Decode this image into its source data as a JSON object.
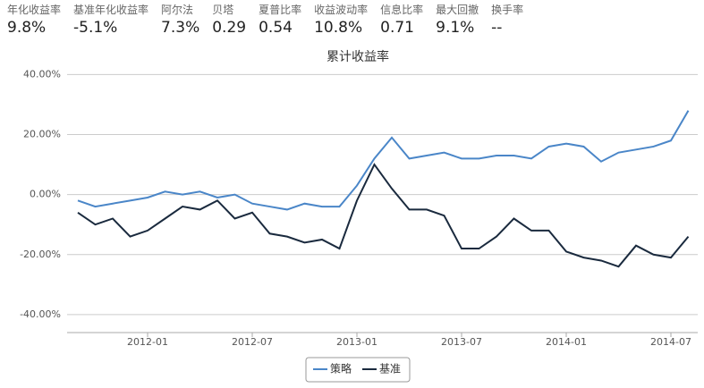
{
  "stats": [
    {
      "label": "年化收益率",
      "value": "9.8%"
    },
    {
      "label": "基准年化收益率",
      "value": "-5.1%"
    },
    {
      "label": "阿尔法",
      "value": "7.3%"
    },
    {
      "label": "贝塔",
      "value": "0.29"
    },
    {
      "label": "夏普比率",
      "value": "0.54"
    },
    {
      "label": "收益波动率",
      "value": "10.8%"
    },
    {
      "label": "信息比率",
      "value": "0.71"
    },
    {
      "label": "最大回撤",
      "value": "9.1%"
    },
    {
      "label": "换手率",
      "value": "--"
    }
  ],
  "chart_data": {
    "type": "line",
    "title": "累计收益率",
    "x": [
      "2011-09",
      "2011-10",
      "2011-11",
      "2011-12",
      "2012-01",
      "2012-02",
      "2012-03",
      "2012-04",
      "2012-05",
      "2012-06",
      "2012-07",
      "2012-08",
      "2012-09",
      "2012-10",
      "2012-11",
      "2012-12",
      "2013-01",
      "2013-02",
      "2013-03",
      "2013-04",
      "2013-05",
      "2013-06",
      "2013-07",
      "2013-08",
      "2013-09",
      "2013-10",
      "2013-11",
      "2013-12",
      "2014-01",
      "2014-02",
      "2014-03",
      "2014-04",
      "2014-05",
      "2014-06",
      "2014-07",
      "2014-08"
    ],
    "series": [
      {
        "name": "策略",
        "color": "#4a86c8",
        "values": [
          -2,
          -4,
          -3,
          -2,
          -1,
          1,
          0,
          1,
          -1,
          0,
          -3,
          -4,
          -5,
          -3,
          -4,
          -4,
          3,
          12,
          19,
          12,
          13,
          14,
          12,
          12,
          13,
          13,
          12,
          16,
          17,
          16,
          11,
          14,
          15,
          16,
          18,
          28
        ]
      },
      {
        "name": "基准",
        "color": "#1a2a3e",
        "values": [
          -6,
          -10,
          -8,
          -14,
          -12,
          -8,
          -4,
          -5,
          -2,
          -8,
          -6,
          -13,
          -14,
          -16,
          -15,
          -18,
          -2,
          10,
          2,
          -5,
          -5,
          -7,
          -18,
          -18,
          -14,
          -8,
          -12,
          -12,
          -19,
          -21,
          -22,
          -24,
          -17,
          -20,
          -21,
          -14
        ]
      }
    ],
    "ylim": [
      -46,
      44
    ],
    "yticks": [
      {
        "value": -40,
        "label": "-40.00%"
      },
      {
        "value": -20,
        "label": "-20.00%"
      },
      {
        "value": 0,
        "label": "0.00%"
      },
      {
        "value": 20,
        "label": "20.00%"
      },
      {
        "value": 40,
        "label": "40.00%"
      }
    ],
    "xticks": [
      "2012-01",
      "2012-07",
      "2013-01",
      "2013-07",
      "2014-01",
      "2014-07"
    ],
    "grid": true
  }
}
